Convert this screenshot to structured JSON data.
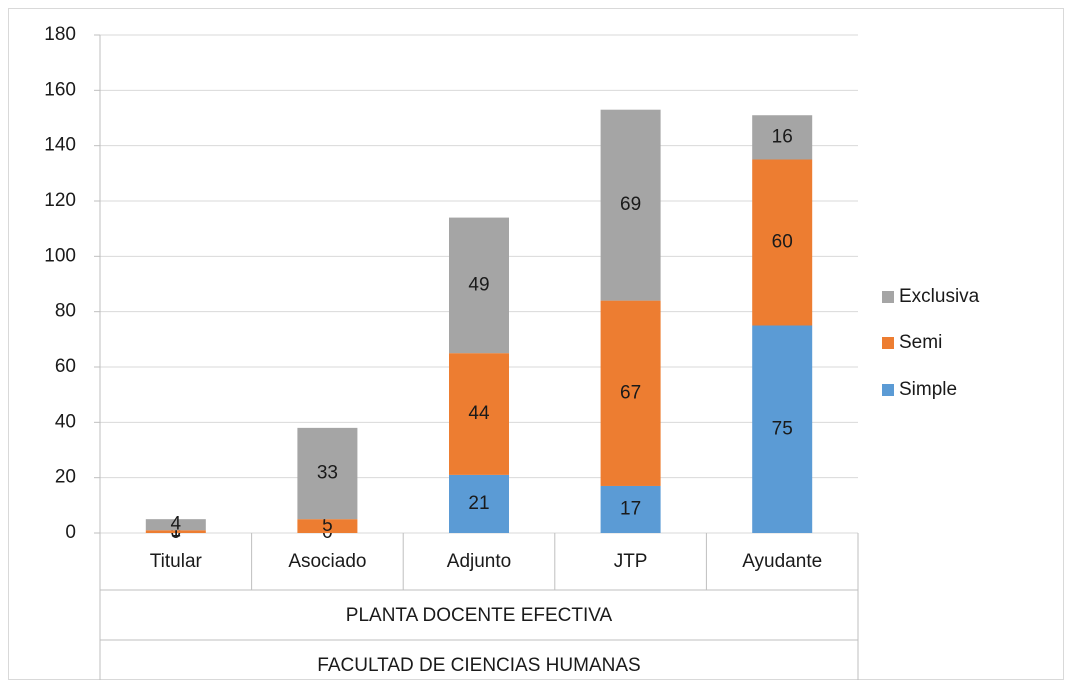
{
  "chart_data": {
    "type": "stacked_bar",
    "categories": [
      "Titular",
      "Asociado",
      "Adjunto",
      "JTP",
      "Ayudante"
    ],
    "group_labels": [
      "PLANTA DOCENTE EFECTIVA",
      "FACULTAD DE CIENCIAS HUMANAS"
    ],
    "series": [
      {
        "name": "Simple",
        "color": "#5b9bd5",
        "values": [
          0,
          0,
          21,
          17,
          75
        ]
      },
      {
        "name": "Semi",
        "color": "#ed7d31",
        "values": [
          1,
          5,
          44,
          67,
          60
        ]
      },
      {
        "name": "Exclusiva",
        "color": "#a5a5a5",
        "values": [
          4,
          33,
          49,
          69,
          16
        ]
      }
    ],
    "ylim": [
      0,
      180
    ],
    "yticks": [
      0,
      20,
      40,
      60,
      80,
      100,
      120,
      140,
      160,
      180
    ],
    "grid": true,
    "legend": "right"
  }
}
